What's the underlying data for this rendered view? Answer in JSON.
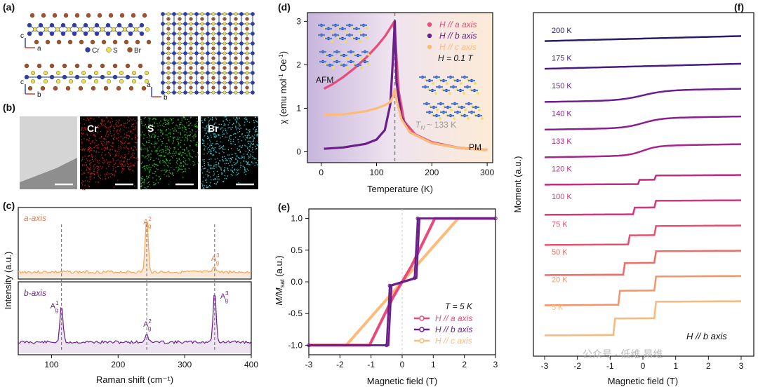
{
  "panels": {
    "a": {
      "label": "(a)",
      "legend": [
        "Cr",
        "S",
        "Br"
      ],
      "colors": {
        "Cr": "#2c3ea8",
        "S": "#f0e048",
        "Br": "#a0522d",
        "bond": "#5f7bb8"
      },
      "axes_left": {
        "up": "c",
        "right": "a"
      },
      "axes_left2": {
        "up": "c",
        "right": "b"
      },
      "axes_right": {
        "up": "a",
        "right": "b"
      }
    },
    "b": {
      "label": "(b)",
      "maps": [
        {
          "name": "",
          "color": "#cfcfcf"
        },
        {
          "name": "Cr",
          "color": "#d21e1e"
        },
        {
          "name": "S",
          "color": "#27c425"
        },
        {
          "name": "Br",
          "color": "#2fd3d8"
        }
      ]
    }
  },
  "chart_data": [
    {
      "panel": "(c)",
      "type": "line",
      "xlabel": "Raman shift (cm⁻¹)",
      "ylabel": "Intensity (a.u.)",
      "xlim": [
        50,
        400
      ],
      "xticks": [
        100,
        200,
        300,
        400
      ],
      "series": [
        {
          "name": "a-axis",
          "color": "#f5a35a",
          "peaks": [
            {
              "label": "A",
              "sup": "2",
              "sub": "g",
              "x": 243
            },
            {
              "label": "A",
              "sup": "3",
              "sub": "g",
              "x": 345
            }
          ]
        },
        {
          "name": "b-axis",
          "color": "#6a1f8a",
          "peaks": [
            {
              "label": "A",
              "sup": "1",
              "sub": "g",
              "x": 115
            },
            {
              "label": "A",
              "sup": "2",
              "sub": "g",
              "x": 243
            },
            {
              "label": "A",
              "sup": "3",
              "sub": "g",
              "x": 345
            }
          ]
        }
      ]
    },
    {
      "panel": "(d)",
      "type": "line",
      "xlabel": "Temperature (K)",
      "ylabel_main": "χ (emu mol",
      "ylabel_sup": "-1",
      "ylabel_mid": " Oe",
      "ylabel_sup2": "-1",
      "ylabel_end": ")",
      "xlim": [
        -25,
        310
      ],
      "ylim": [
        -0.25,
        3.2
      ],
      "xticks": [
        0,
        100,
        200,
        300
      ],
      "yticks": [
        0,
        1,
        2,
        3
      ],
      "annotations": {
        "afm": "AFM",
        "pm": "PM",
        "tn": "T",
        "tn_sub": "N",
        "tn_rest": " ~ 133 K",
        "field": "H = 0.1 T",
        "tn_value": 133
      },
      "series": [
        {
          "name": "H // a axis",
          "color": "#e94a7a",
          "x": [
            5,
            20,
            40,
            60,
            80,
            100,
            115,
            125,
            130,
            133,
            140,
            150,
            170,
            200,
            250,
            300
          ],
          "y": [
            1.45,
            1.55,
            1.72,
            1.92,
            2.15,
            2.42,
            2.65,
            2.85,
            2.95,
            2.8,
            1.4,
            0.7,
            0.4,
            0.22,
            0.09,
            0.04
          ]
        },
        {
          "name": "H // b axis",
          "color": "#6a1f8a",
          "x": [
            5,
            40,
            80,
            100,
            115,
            125,
            130,
            133,
            136,
            145,
            160,
            200,
            250,
            300
          ],
          "y": [
            0.07,
            0.1,
            0.18,
            0.28,
            0.5,
            1.1,
            2.2,
            3.02,
            1.6,
            0.8,
            0.45,
            0.2,
            0.09,
            0.04
          ]
        },
        {
          "name": "H // c axis",
          "color": "#fdbb7a",
          "x": [
            5,
            40,
            80,
            100,
            115,
            125,
            130,
            133,
            136,
            145,
            160,
            200,
            250,
            300
          ],
          "y": [
            0.85,
            0.86,
            0.93,
            1.0,
            1.07,
            1.15,
            1.28,
            1.45,
            1.2,
            0.75,
            0.45,
            0.2,
            0.09,
            0.04
          ]
        }
      ]
    },
    {
      "panel": "(e)",
      "type": "line",
      "xlabel": "Magnetic field (T)",
      "ylabel": "M/M",
      "ylabel_sub": "sat",
      "ylabel_end": " (a.u.)",
      "xlim": [
        -3,
        3
      ],
      "ylim": [
        -1.15,
        1.15
      ],
      "xticks": [
        -3,
        -2,
        -1,
        0,
        1,
        2,
        3
      ],
      "yticks": [
        -1.0,
        -0.5,
        0.0,
        0.5,
        1.0
      ],
      "annotations": {
        "temp": "T = 5 K"
      },
      "series": [
        {
          "name": "H // a axis",
          "color": "#e94a7a",
          "x": [
            -3,
            -1.05,
            -0.3,
            0.3,
            1.05,
            3
          ],
          "y": [
            -1,
            -1,
            -0.25,
            0.25,
            1,
            1
          ]
        },
        {
          "name": "H // b axis",
          "color": "#6a1f8a",
          "x": [
            -3,
            -0.5,
            -0.4,
            0.4,
            0.5,
            3
          ],
          "y": [
            -1,
            -1,
            -0.06,
            0.06,
            1,
            1
          ]
        },
        {
          "name": "H // c axis",
          "color": "#fdbb7a",
          "x": [
            -3,
            -1.8,
            1.8,
            3
          ],
          "y": [
            -1,
            -1,
            1,
            1
          ]
        }
      ]
    },
    {
      "panel": "(f)",
      "type": "line",
      "xlabel": "Magnetic field (T)",
      "ylabel": "Moment (a.u.)",
      "xlim": [
        -3,
        3
      ],
      "xticks": [
        -3,
        -2,
        -1,
        0,
        1,
        2,
        3
      ],
      "annotation": "H // b axis",
      "series": [
        {
          "name": "200 K",
          "color": "#2d1b6b"
        },
        {
          "name": "175 K",
          "color": "#4b1a80"
        },
        {
          "name": "150 K",
          "color": "#6d1e8c"
        },
        {
          "name": "140 K",
          "color": "#8a2090"
        },
        {
          "name": "133 K",
          "color": "#a8248c"
        },
        {
          "name": "120 K",
          "color": "#c22a84"
        },
        {
          "name": "100 K",
          "color": "#d8367a"
        },
        {
          "name": "75 K",
          "color": "#e9506e"
        },
        {
          "name": "50 K",
          "color": "#f26c66"
        },
        {
          "name": "20 K",
          "color": "#f79466"
        },
        {
          "name": "5 K",
          "color": "#fbb87a"
        }
      ]
    }
  ],
  "watermark": "公众号 · 低维 昂维"
}
